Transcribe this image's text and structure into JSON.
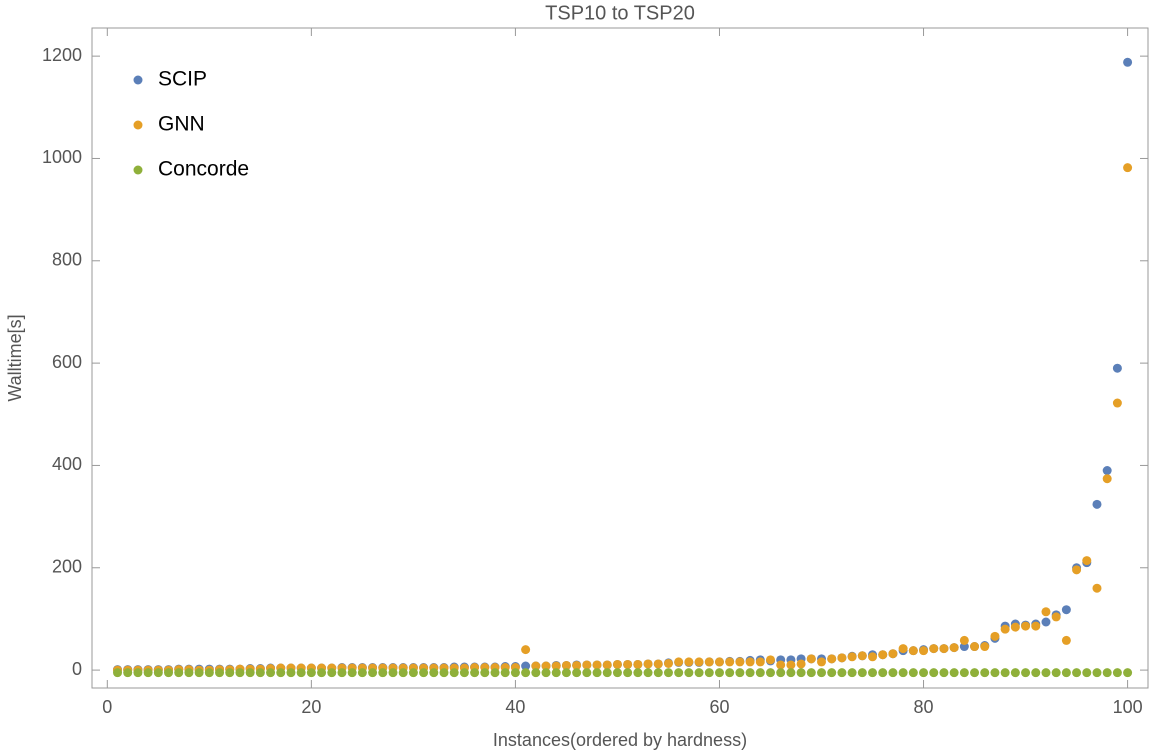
{
  "chart_data": {
    "type": "scatter",
    "title": "TSP10 to TSP20",
    "x_label": "Instances(ordered by hardness)",
    "y_label": "Walltime[s]",
    "x": [
      1,
      2,
      3,
      4,
      5,
      6,
      7,
      8,
      9,
      10,
      11,
      12,
      13,
      14,
      15,
      16,
      17,
      18,
      19,
      20,
      21,
      22,
      23,
      24,
      25,
      26,
      27,
      28,
      29,
      30,
      31,
      32,
      33,
      34,
      35,
      36,
      37,
      38,
      39,
      40,
      41,
      42,
      43,
      44,
      45,
      46,
      47,
      48,
      49,
      50,
      51,
      52,
      53,
      54,
      55,
      56,
      57,
      58,
      59,
      60,
      61,
      62,
      63,
      64,
      65,
      66,
      67,
      68,
      69,
      70,
      71,
      72,
      73,
      74,
      75,
      76,
      77,
      78,
      79,
      80,
      81,
      82,
      83,
      84,
      85,
      86,
      87,
      88,
      89,
      90,
      91,
      92,
      93,
      94,
      95,
      96,
      97,
      98,
      99,
      100
    ],
    "series": [
      {
        "name": "SCIP",
        "color": "#5b7fb8",
        "values": [
          1,
          1,
          1,
          1,
          1,
          1,
          2,
          2,
          2,
          2,
          2,
          2,
          2,
          3,
          3,
          4,
          4,
          4,
          4,
          4,
          4,
          4,
          5,
          5,
          5,
          5,
          5,
          5,
          5,
          5,
          5,
          5,
          5,
          6,
          6,
          6,
          6,
          6,
          7,
          7,
          8,
          8,
          8,
          9,
          9,
          10,
          10,
          10,
          10,
          11,
          11,
          11,
          12,
          12,
          14,
          15,
          15,
          15,
          16,
          16,
          17,
          17,
          19,
          20,
          18,
          20,
          20,
          22,
          22,
          22,
          22,
          24,
          27,
          28,
          30,
          30,
          32,
          38,
          38,
          40,
          42,
          42,
          44,
          46,
          46,
          48,
          62,
          86,
          90,
          88,
          90,
          94,
          108,
          118,
          200,
          210,
          324,
          390,
          590,
          1188
        ]
      },
      {
        "name": "GNN",
        "color": "#e59f26",
        "values": [
          0,
          0,
          0,
          0,
          0,
          0,
          1,
          1,
          0,
          0,
          1,
          1,
          2,
          2,
          2,
          3,
          4,
          4,
          4,
          4,
          4,
          4,
          4,
          4,
          4,
          4,
          4,
          4,
          4,
          4,
          4,
          4,
          4,
          4,
          4,
          5,
          5,
          5,
          5,
          5,
          40,
          8,
          8,
          8,
          9,
          9,
          10,
          10,
          10,
          11,
          11,
          11,
          12,
          12,
          13,
          16,
          16,
          16,
          16,
          16,
          16,
          16,
          16,
          16,
          20,
          10,
          10,
          12,
          22,
          16,
          22,
          24,
          26,
          28,
          26,
          30,
          32,
          42,
          38,
          38,
          42,
          42,
          44,
          58,
          46,
          46,
          66,
          80,
          84,
          86,
          86,
          114,
          104,
          58,
          196,
          214,
          160,
          374,
          522,
          982
        ]
      },
      {
        "name": "Concorde",
        "color": "#8fb03a",
        "values": [
          -5,
          -5,
          -5,
          -5,
          -5,
          -5,
          -5,
          -5,
          -5,
          -5,
          -5,
          -5,
          -5,
          -5,
          -5,
          -5,
          -5,
          -5,
          -5,
          -5,
          -5,
          -5,
          -5,
          -5,
          -5,
          -5,
          -5,
          -5,
          -5,
          -5,
          -5,
          -5,
          -5,
          -5,
          -5,
          -5,
          -5,
          -5,
          -5,
          -5,
          -5,
          -5,
          -5,
          -5,
          -5,
          -5,
          -5,
          -5,
          -5,
          -5,
          -5,
          -5,
          -5,
          -5,
          -5,
          -5,
          -5,
          -5,
          -5,
          -5,
          -5,
          -5,
          -5,
          -5,
          -5,
          -5,
          -5,
          -5,
          -5,
          -5,
          -5,
          -5,
          -5,
          -5,
          -5,
          -5,
          -5,
          -5,
          -5,
          -5,
          -5,
          -5,
          -5,
          -5,
          -5,
          -5,
          -5,
          -5,
          -5,
          -5,
          -5,
          -5,
          -5,
          -5,
          -5,
          -5,
          -5,
          -5,
          -5,
          -5
        ]
      }
    ],
    "xlim": [
      -1.5,
      102
    ],
    "ylim": [
      -35,
      1255
    ],
    "xticks": [
      0,
      20,
      40,
      60,
      80,
      100
    ],
    "yticks": [
      0,
      200,
      400,
      600,
      800,
      1000,
      1200
    ],
    "legend": "upper left"
  }
}
